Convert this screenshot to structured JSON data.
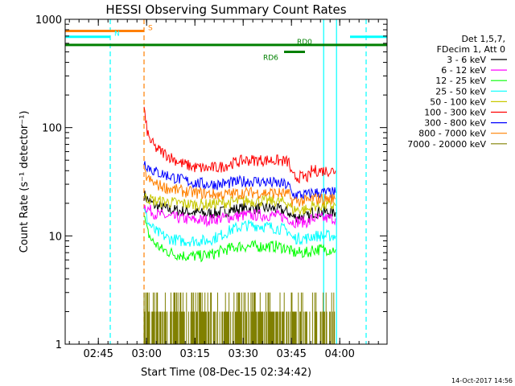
{
  "chart_data": {
    "type": "line",
    "title": "HESSI Observing Summary Count Rates",
    "xlabel": "Start Time (08-Dec-15 02:34:42)",
    "ylabel": "Count Rate (s⁻¹ detector⁻¹)",
    "x_unit": "minutes after 02:34:42",
    "xlim": [
      0,
      100
    ],
    "ylim": [
      1,
      1000
    ],
    "yscale": "log",
    "x_ticks": [
      {
        "x": 10.3,
        "label": "02:45"
      },
      {
        "x": 25.3,
        "label": "03:00"
      },
      {
        "x": 40.3,
        "label": "03:15"
      },
      {
        "x": 55.3,
        "label": "03:30"
      },
      {
        "x": 70.3,
        "label": "03:45"
      },
      {
        "x": 85.3,
        "label": "04:00"
      }
    ],
    "y_ticks": [
      {
        "y": 1,
        "label": "1"
      },
      {
        "y": 10,
        "label": "10"
      },
      {
        "y": 100,
        "label": "100"
      },
      {
        "y": 1000,
        "label": "1000"
      }
    ],
    "legend_header": [
      "Det 1,5,7,",
      "FDecim 1, Att 0"
    ],
    "legend_position": "right",
    "series": [
      {
        "name": "3 - 6 keV",
        "color": "#000000",
        "points": [
          [
            24.5,
            24
          ],
          [
            26,
            21
          ],
          [
            28,
            19
          ],
          [
            32,
            17.5
          ],
          [
            36,
            17
          ],
          [
            40,
            16.5
          ],
          [
            44,
            16
          ],
          [
            48,
            16.5
          ],
          [
            52,
            17.5
          ],
          [
            56,
            18
          ],
          [
            60,
            18
          ],
          [
            64,
            18
          ],
          [
            66,
            17.5
          ],
          [
            68,
            17
          ],
          [
            69.5,
            16.5
          ],
          [
            70.5,
            15
          ],
          [
            76,
            15
          ],
          [
            76.5,
            16.5
          ],
          [
            84,
            16.5
          ]
        ]
      },
      {
        "name": "6 - 12 keV",
        "color": "#ff00ff",
        "points": [
          [
            24.5,
            19
          ],
          [
            26,
            17.5
          ],
          [
            28,
            16
          ],
          [
            32,
            15
          ],
          [
            36,
            14.5
          ],
          [
            40,
            14
          ],
          [
            44,
            14
          ],
          [
            48,
            14.5
          ],
          [
            52,
            15
          ],
          [
            56,
            15.5
          ],
          [
            60,
            15.5
          ],
          [
            64,
            15.5
          ],
          [
            68,
            15
          ],
          [
            69.5,
            14.5
          ],
          [
            70.5,
            13.5
          ],
          [
            76,
            13.5
          ],
          [
            76.5,
            14.5
          ],
          [
            84,
            14.5
          ]
        ]
      },
      {
        "name": "12 - 25 keV",
        "color": "#00ff00",
        "points": [
          [
            24.5,
            15
          ],
          [
            25.5,
            11
          ],
          [
            27,
            9
          ],
          [
            30,
            7.5
          ],
          [
            34,
            6.8
          ],
          [
            38,
            6.5
          ],
          [
            42,
            6.5
          ],
          [
            46,
            6.8
          ],
          [
            50,
            7.5
          ],
          [
            54,
            8
          ],
          [
            58,
            8
          ],
          [
            62,
            8
          ],
          [
            66,
            8
          ],
          [
            68,
            7.8
          ],
          [
            69.5,
            7.5
          ],
          [
            70.5,
            7
          ],
          [
            76,
            7
          ],
          [
            76.5,
            7.5
          ],
          [
            84,
            7.5
          ]
        ]
      },
      {
        "name": "25 - 50 keV",
        "color": "#00ffff",
        "points": [
          [
            24.5,
            17
          ],
          [
            26,
            13
          ],
          [
            28,
            11
          ],
          [
            32,
            9.5
          ],
          [
            36,
            9
          ],
          [
            40,
            9
          ],
          [
            44,
            9
          ],
          [
            48,
            10
          ],
          [
            52,
            11.5
          ],
          [
            56,
            12.5
          ],
          [
            60,
            12.5
          ],
          [
            64,
            12
          ],
          [
            68,
            11.5
          ],
          [
            69.5,
            11
          ],
          [
            70.5,
            9.5
          ],
          [
            76,
            9.5
          ],
          [
            76.5,
            10
          ],
          [
            84,
            10
          ]
        ]
      },
      {
        "name": "50 - 100 keV",
        "color": "#c8c800",
        "points": [
          [
            24.5,
            23
          ],
          [
            26,
            22
          ],
          [
            28,
            21
          ],
          [
            32,
            20.5
          ],
          [
            36,
            20
          ],
          [
            40,
            19.5
          ],
          [
            44,
            19.5
          ],
          [
            48,
            20
          ],
          [
            52,
            20.5
          ],
          [
            56,
            21
          ],
          [
            60,
            21
          ],
          [
            64,
            21
          ],
          [
            68,
            20.5
          ],
          [
            69.5,
            20
          ],
          [
            70.5,
            17.5
          ],
          [
            76,
            17.5
          ],
          [
            76.5,
            19
          ],
          [
            84,
            19
          ]
        ]
      },
      {
        "name": "100 - 300 keV",
        "color": "#ff0000",
        "points": [
          [
            24.5,
            160
          ],
          [
            25,
            110
          ],
          [
            26,
            80
          ],
          [
            28,
            65
          ],
          [
            32,
            55
          ],
          [
            36,
            47
          ],
          [
            40,
            43
          ],
          [
            44,
            42
          ],
          [
            48,
            43
          ],
          [
            52,
            47
          ],
          [
            56,
            50
          ],
          [
            60,
            50
          ],
          [
            64,
            50
          ],
          [
            68,
            49
          ],
          [
            69.5,
            48
          ],
          [
            70.5,
            35
          ],
          [
            76,
            35
          ],
          [
            76.5,
            40
          ],
          [
            84,
            40
          ]
        ]
      },
      {
        "name": "300 - 800 keV",
        "color": "#0000ff",
        "points": [
          [
            24.5,
            48
          ],
          [
            26,
            43
          ],
          [
            28,
            39
          ],
          [
            32,
            36
          ],
          [
            36,
            33
          ],
          [
            40,
            31
          ],
          [
            44,
            30
          ],
          [
            48,
            30
          ],
          [
            52,
            31
          ],
          [
            56,
            32
          ],
          [
            60,
            32
          ],
          [
            64,
            31
          ],
          [
            68,
            30
          ],
          [
            69.5,
            29
          ],
          [
            70.5,
            24
          ],
          [
            76,
            24
          ],
          [
            76.5,
            25
          ],
          [
            84,
            25
          ]
        ]
      },
      {
        "name": "800 - 7000 keV",
        "color": "#ff8000",
        "points": [
          [
            24.5,
            38
          ],
          [
            26,
            33
          ],
          [
            28,
            30
          ],
          [
            32,
            27.5
          ],
          [
            36,
            26
          ],
          [
            40,
            25
          ],
          [
            44,
            24.5
          ],
          [
            48,
            24
          ],
          [
            52,
            24.5
          ],
          [
            56,
            25
          ],
          [
            60,
            25
          ],
          [
            64,
            25
          ],
          [
            68,
            24.5
          ],
          [
            69.5,
            24
          ],
          [
            70.5,
            21
          ],
          [
            76,
            21
          ],
          [
            76.5,
            22
          ],
          [
            84,
            22
          ]
        ]
      },
      {
        "name": "7000 - 20000 keV",
        "color": "#808000",
        "style": "counts-1-3",
        "points": [
          [
            24.5,
            3
          ],
          [
            84,
            2
          ]
        ]
      }
    ],
    "annotations": [
      {
        "label": "S",
        "color": "#ff8000",
        "x_start": 0,
        "x_end": 24.5,
        "y": 780
      },
      {
        "label": "N",
        "color": "#00ffff",
        "x_start": 0,
        "x_end": 14,
        "y": 690
      },
      {
        "label": "",
        "color": "#00ffff",
        "x_start": 88.5,
        "x_end": 100,
        "y": 690
      },
      {
        "label": "RD0",
        "color": "#008000",
        "x_start": 0,
        "x_end": 100,
        "y": 580
      },
      {
        "label": "RD6",
        "color": "#008000",
        "x_start": 68,
        "x_end": 74.5,
        "y": 500
      }
    ],
    "vlines": [
      {
        "x": 14,
        "color": "#00ffff",
        "style": "dashed"
      },
      {
        "x": 24.5,
        "color": "#ff8000",
        "style": "dashed"
      },
      {
        "x": 80.3,
        "color": "#00ffff",
        "style": "solid"
      },
      {
        "x": 84.3,
        "color": "#00ffff",
        "style": "solid"
      },
      {
        "x": 93.5,
        "color": "#00ffff",
        "style": "dashed"
      }
    ]
  },
  "footer_date": "14-Oct-2017 14:56"
}
